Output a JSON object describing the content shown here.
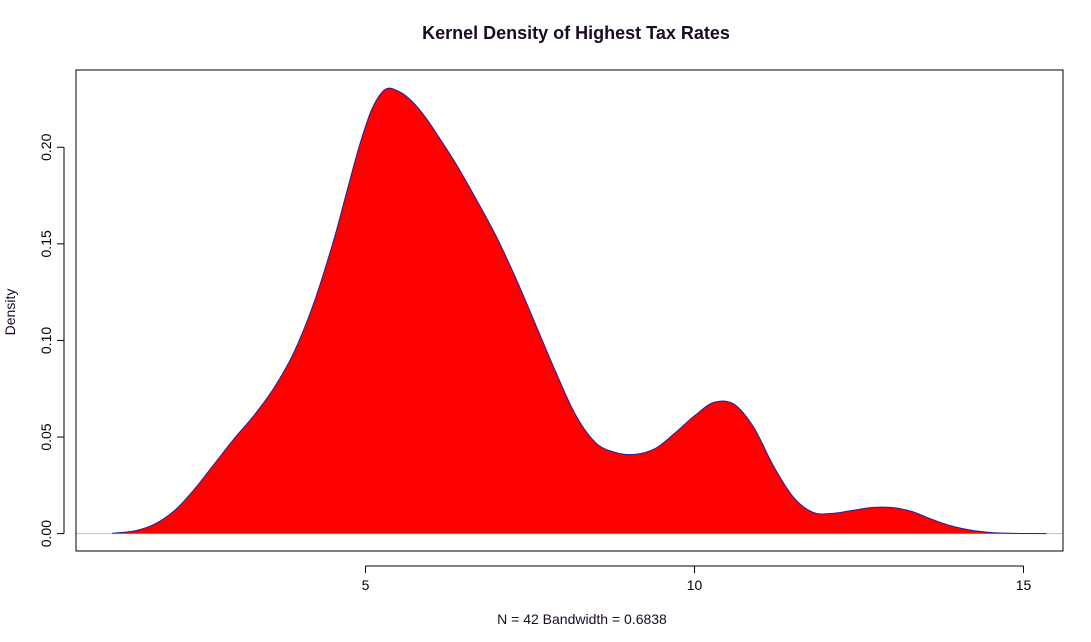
{
  "chart_data": {
    "type": "area",
    "title": "Kernel Density of Highest Tax Rates",
    "xlabel": "N = 42   Bandwidth = 0.6838",
    "ylabel": "Density",
    "xlim": [
      0.6,
      15.6
    ],
    "ylim": [
      -0.009,
      0.24
    ],
    "x_ticks": [
      5,
      10,
      15
    ],
    "x_tick_labels": [
      "5",
      "10",
      "15"
    ],
    "y_ticks": [
      0.0,
      0.05,
      0.1,
      0.15,
      0.2
    ],
    "y_tick_labels": [
      "0.00",
      "0.05",
      "0.10",
      "0.15",
      "0.20"
    ],
    "grid": false,
    "legend": "none",
    "baseline": 0,
    "fill_color": "#ff0000",
    "line_color": "#2020a0",
    "baseline_color": "#c0c0c0",
    "series": [
      {
        "x": [
          1.15,
          1.5,
          1.8,
          2.1,
          2.4,
          2.7,
          3.0,
          3.3,
          3.6,
          3.9,
          4.2,
          4.5,
          4.7,
          4.9,
          5.1,
          5.3,
          5.5,
          5.7,
          5.9,
          6.1,
          6.4,
          6.7,
          7.0,
          7.3,
          7.6,
          7.9,
          8.2,
          8.5,
          8.8,
          9.1,
          9.4,
          9.7,
          10.0,
          10.3,
          10.6,
          10.9,
          11.2,
          11.5,
          11.8,
          12.1,
          12.4,
          12.7,
          13.0,
          13.3,
          13.6,
          13.9,
          14.2,
          14.5,
          14.8,
          15.1,
          15.35
        ],
        "y": [
          0.0002,
          0.0015,
          0.005,
          0.012,
          0.023,
          0.036,
          0.049,
          0.061,
          0.075,
          0.093,
          0.118,
          0.15,
          0.175,
          0.2,
          0.22,
          0.23,
          0.229,
          0.224,
          0.216,
          0.206,
          0.19,
          0.172,
          0.153,
          0.131,
          0.107,
          0.083,
          0.061,
          0.047,
          0.042,
          0.041,
          0.044,
          0.052,
          0.061,
          0.068,
          0.067,
          0.055,
          0.035,
          0.019,
          0.011,
          0.0105,
          0.012,
          0.0135,
          0.0135,
          0.0115,
          0.0075,
          0.004,
          0.0018,
          0.0006,
          0.0002,
          5e-05,
          0.0
        ]
      }
    ]
  }
}
